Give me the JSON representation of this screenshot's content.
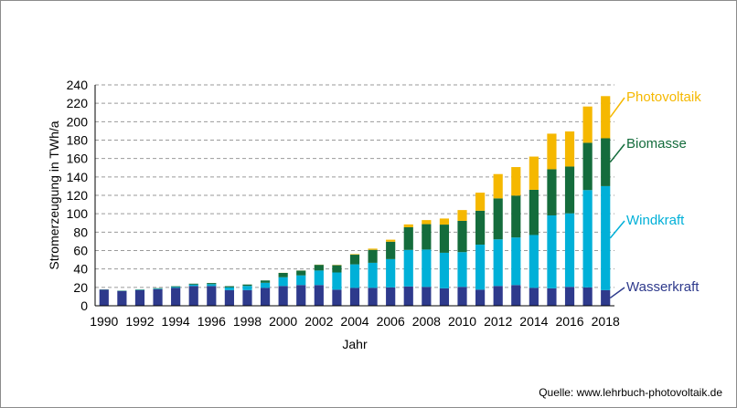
{
  "chart_data": {
    "type": "bar",
    "stacked": true,
    "xlabel": "Jahr",
    "ylabel": "Stromerzeugung in TWh/a",
    "ylim": [
      0,
      240
    ],
    "yticks": [
      0,
      20,
      40,
      60,
      80,
      100,
      120,
      140,
      160,
      180,
      200,
      220,
      240
    ],
    "grid": "horizontal dashed",
    "categories": [
      "1990",
      "1991",
      "1992",
      "1993",
      "1994",
      "1995",
      "1996",
      "1997",
      "1998",
      "1999",
      "2000",
      "2001",
      "2002",
      "2003",
      "2004",
      "2005",
      "2006",
      "2007",
      "2008",
      "2009",
      "2010",
      "2011",
      "2012",
      "2013",
      "2014",
      "2015",
      "2016",
      "2017",
      "2018"
    ],
    "xtick_labels": [
      "1990",
      "1992",
      "1994",
      "1996",
      "1998",
      "2000",
      "2002",
      "2004",
      "2006",
      "2008",
      "2010",
      "2012",
      "2014",
      "2016",
      "2018"
    ],
    "series": [
      {
        "name": "Wasserkraft",
        "color": "#2e3a8c",
        "values": [
          17.5,
          16,
          17,
          18,
          19.5,
          21.5,
          21.5,
          17,
          17,
          19.5,
          21.5,
          22.5,
          22.5,
          17.5,
          19.5,
          19.5,
          20,
          21,
          20.5,
          19,
          20.5,
          17.5,
          21.5,
          22.5,
          19.5,
          19,
          20.5,
          20,
          17
        ]
      },
      {
        "name": "Windkraft",
        "color": "#00b0d8",
        "values": [
          0.1,
          0.2,
          0.3,
          0.6,
          0.9,
          1.5,
          2.0,
          3.0,
          4.6,
          5.5,
          9.5,
          10.5,
          15.8,
          18.7,
          25.5,
          27.2,
          30.7,
          39.7,
          40.6,
          38.6,
          37.8,
          48.9,
          50.7,
          51.7,
          57.4,
          79.2,
          79.9,
          105.7,
          113.0
        ]
      },
      {
        "name": "Biomasse",
        "color": "#146c3c",
        "values": [
          0.2,
          0.3,
          0.4,
          0.5,
          0.8,
          1.0,
          1.2,
          1.3,
          1.5,
          2.5,
          4.7,
          5.2,
          6.2,
          7.9,
          10.5,
          14.1,
          18.9,
          24.6,
          27.6,
          30.6,
          34.0,
          36.9,
          44.5,
          45.5,
          49.1,
          50.1,
          50.9,
          51.4,
          52.0
        ]
      },
      {
        "name": "Photovoltaik",
        "color": "#f5b800",
        "values": [
          0,
          0,
          0,
          0,
          0,
          0,
          0,
          0,
          0,
          0,
          0.1,
          0.1,
          0.2,
          0.3,
          0.6,
          1.3,
          2.2,
          3.1,
          4.4,
          6.6,
          11.7,
          19.6,
          26.4,
          31.0,
          36.1,
          38.7,
          38.1,
          39.4,
          45.8
        ]
      }
    ]
  },
  "source_label": "Quelle: www.lehrbuch-photovoltaik.de"
}
